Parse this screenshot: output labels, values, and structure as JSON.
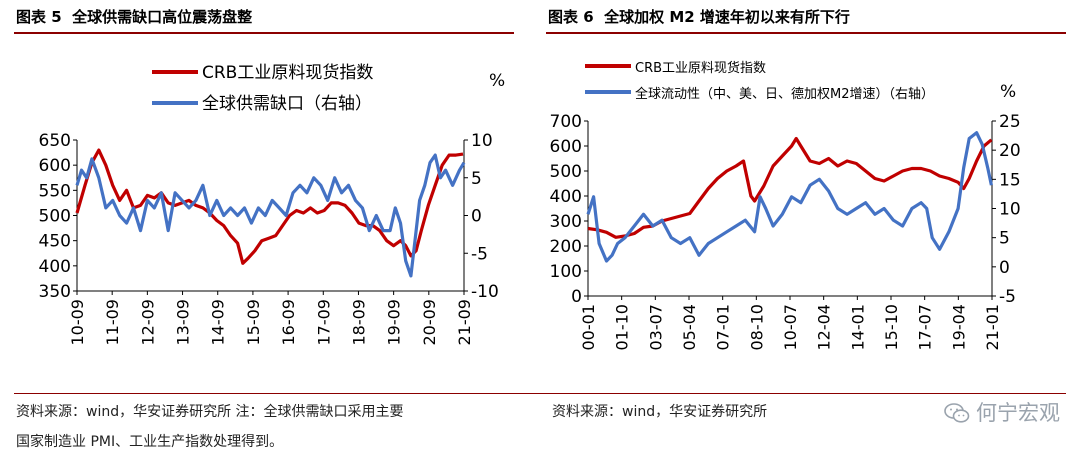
{
  "charts": [
    {
      "fig_label": "图表 5",
      "title": "全球供需缺口高位震荡盘整",
      "source": "资料来源：wind，华安证券研究所 注：全球供需缺口采用主要",
      "source2": "国家制造业 PMI、工业生产指数处理得到。"
    },
    {
      "fig_label": "图表 6",
      "title": "全球加权 M2 增速年初以来有所下行",
      "source": "资料来源：wind，华安证券研究所"
    }
  ],
  "watermark": {
    "text": "何宁宏观",
    "icon": "wechat-icon"
  },
  "chart_data": [
    {
      "type": "line",
      "title": "全球供需缺口高位震荡盘整",
      "legend_position": "top",
      "grid": false,
      "y_unit_right": "%",
      "x_ticks": [
        "10-09",
        "11-09",
        "12-09",
        "13-09",
        "14-09",
        "15-09",
        "16-09",
        "17-09",
        "18-09",
        "19-09",
        "20-09",
        "21-09"
      ],
      "yticks_left": [
        "350",
        "400",
        "450",
        "500",
        "550",
        "600",
        "650"
      ],
      "yticks_right": [
        "-10",
        "-5",
        "0",
        "5",
        "10"
      ],
      "ylim_left": [
        350,
        650
      ],
      "ylim_right": [
        -10,
        10
      ],
      "xlim": [
        2010.67,
        2021.83
      ],
      "series": [
        {
          "name": "CRB工业原料现货指数",
          "axis": "left",
          "color": "#c00000",
          "x": [
            2010.67,
            2010.9,
            2011.1,
            2011.3,
            2011.5,
            2011.7,
            2011.9,
            2012.1,
            2012.3,
            2012.5,
            2012.7,
            2012.9,
            2013.1,
            2013.3,
            2013.5,
            2013.7,
            2013.9,
            2014.1,
            2014.3,
            2014.5,
            2014.7,
            2014.9,
            2015.1,
            2015.3,
            2015.45,
            2015.6,
            2015.8,
            2016.0,
            2016.2,
            2016.4,
            2016.6,
            2016.8,
            2017.0,
            2017.2,
            2017.4,
            2017.6,
            2017.8,
            2018.0,
            2018.2,
            2018.4,
            2018.6,
            2018.8,
            2019.0,
            2019.2,
            2019.4,
            2019.6,
            2019.8,
            2020.0,
            2020.15,
            2020.3,
            2020.45,
            2020.6,
            2020.8,
            2021.0,
            2021.2,
            2021.4,
            2021.6,
            2021.8
          ],
          "y": [
            505,
            560,
            605,
            630,
            600,
            560,
            530,
            550,
            515,
            520,
            540,
            535,
            545,
            525,
            520,
            525,
            530,
            520,
            515,
            505,
            490,
            480,
            460,
            445,
            405,
            415,
            430,
            450,
            455,
            460,
            480,
            500,
            510,
            505,
            515,
            505,
            510,
            525,
            525,
            520,
            505,
            485,
            480,
            480,
            470,
            450,
            440,
            450,
            440,
            420,
            430,
            470,
            520,
            560,
            600,
            620,
            620,
            622
          ]
        },
        {
          "name": "全球供需缺口（右轴）",
          "axis": "right",
          "color": "#4472c4",
          "x": [
            2010.67,
            2010.8,
            2010.95,
            2011.1,
            2011.3,
            2011.5,
            2011.7,
            2011.9,
            2012.1,
            2012.3,
            2012.5,
            2012.7,
            2012.9,
            2013.1,
            2013.3,
            2013.5,
            2013.7,
            2013.9,
            2014.1,
            2014.3,
            2014.5,
            2014.7,
            2014.9,
            2015.1,
            2015.3,
            2015.5,
            2015.7,
            2015.9,
            2016.1,
            2016.3,
            2016.5,
            2016.7,
            2016.9,
            2017.1,
            2017.3,
            2017.5,
            2017.7,
            2017.9,
            2018.1,
            2018.3,
            2018.5,
            2018.7,
            2018.9,
            2019.1,
            2019.3,
            2019.5,
            2019.7,
            2019.85,
            2020.0,
            2020.15,
            2020.3,
            2020.4,
            2020.55,
            2020.7,
            2020.85,
            2021.0,
            2021.15,
            2021.3,
            2021.5,
            2021.7,
            2021.83
          ],
          "y": [
            4,
            6,
            5,
            7.5,
            5,
            1,
            2,
            0,
            -1,
            1,
            -2,
            2,
            1,
            3,
            -2,
            3,
            2,
            1,
            2,
            4,
            0,
            2,
            0,
            1,
            0,
            1,
            -1,
            1,
            0,
            2,
            1,
            0,
            3,
            4,
            3,
            5,
            4,
            2,
            5,
            3,
            4,
            2,
            1,
            -2,
            0,
            -2,
            -2,
            1,
            -1,
            -6,
            -8,
            -4,
            2,
            4,
            7,
            8,
            5,
            6,
            4,
            6,
            7
          ]
        }
      ]
    },
    {
      "type": "line",
      "title": "全球加权 M2 增速年初以来有所下行",
      "legend_position": "top",
      "grid": false,
      "y_unit_right": "%",
      "x_ticks": [
        "00-01",
        "01-10",
        "03-07",
        "05-04",
        "07-01",
        "08-10",
        "10-07",
        "12-04",
        "14-01",
        "15-10",
        "17-07",
        "19-04",
        "21-01"
      ],
      "yticks_left": [
        "0",
        "100",
        "200",
        "300",
        "400",
        "500",
        "600",
        "700"
      ],
      "yticks_right": [
        "-5",
        "0",
        "5",
        "10",
        "15",
        "20",
        "25"
      ],
      "ylim_left": [
        0,
        700
      ],
      "ylim_right": [
        -5,
        25
      ],
      "xlim": [
        2000.0,
        2021.83
      ],
      "series": [
        {
          "name": "CRB工业原料现货指数",
          "axis": "left",
          "color": "#c00000",
          "x": [
            2000.0,
            2000.5,
            2001.0,
            2001.5,
            2002.0,
            2002.5,
            2003.0,
            2003.5,
            2004.0,
            2004.5,
            2005.0,
            2005.5,
            2006.0,
            2006.5,
            2007.0,
            2007.5,
            2008.0,
            2008.4,
            2008.8,
            2009.0,
            2009.5,
            2010.0,
            2010.5,
            2011.0,
            2011.25,
            2011.5,
            2012.0,
            2012.5,
            2013.0,
            2013.5,
            2014.0,
            2014.5,
            2015.0,
            2015.5,
            2016.0,
            2016.5,
            2017.0,
            2017.5,
            2018.0,
            2018.5,
            2019.0,
            2019.5,
            2020.0,
            2020.3,
            2020.6,
            2021.0,
            2021.4,
            2021.8
          ],
          "y": [
            270,
            265,
            255,
            235,
            240,
            250,
            275,
            280,
            300,
            310,
            320,
            330,
            380,
            430,
            470,
            500,
            520,
            540,
            400,
            380,
            440,
            520,
            560,
            600,
            630,
            600,
            540,
            530,
            550,
            520,
            540,
            530,
            500,
            470,
            460,
            480,
            500,
            510,
            510,
            500,
            480,
            470,
            455,
            430,
            470,
            540,
            600,
            625
          ]
        },
        {
          "name": "全球流动性（中、美、日、德加权M2增速）（右轴）",
          "axis": "right",
          "color": "#4472c4",
          "x": [
            2000.0,
            2000.3,
            2000.6,
            2001.0,
            2001.3,
            2001.6,
            2002.0,
            2002.5,
            2003.0,
            2003.5,
            2004.0,
            2004.5,
            2005.0,
            2005.5,
            2006.0,
            2006.5,
            2007.0,
            2007.5,
            2008.0,
            2008.5,
            2009.0,
            2009.3,
            2009.6,
            2010.0,
            2010.5,
            2011.0,
            2011.5,
            2012.0,
            2012.5,
            2013.0,
            2013.5,
            2014.0,
            2014.5,
            2015.0,
            2015.5,
            2016.0,
            2016.5,
            2017.0,
            2017.5,
            2018.0,
            2018.3,
            2018.6,
            2019.0,
            2019.5,
            2020.0,
            2020.3,
            2020.6,
            2021.0,
            2021.3,
            2021.6,
            2021.8
          ],
          "y": [
            9,
            12,
            4,
            1,
            2,
            4,
            5,
            7,
            9,
            7,
            8,
            5,
            4,
            5,
            2,
            4,
            5,
            6,
            7,
            8,
            6,
            12,
            10,
            7,
            9,
            12,
            11,
            14,
            15,
            13,
            10,
            9,
            10,
            11,
            9,
            10,
            8,
            7,
            10,
            11,
            10,
            5,
            3,
            6,
            10,
            17,
            22,
            23,
            21,
            17,
            14
          ]
        }
      ]
    }
  ]
}
